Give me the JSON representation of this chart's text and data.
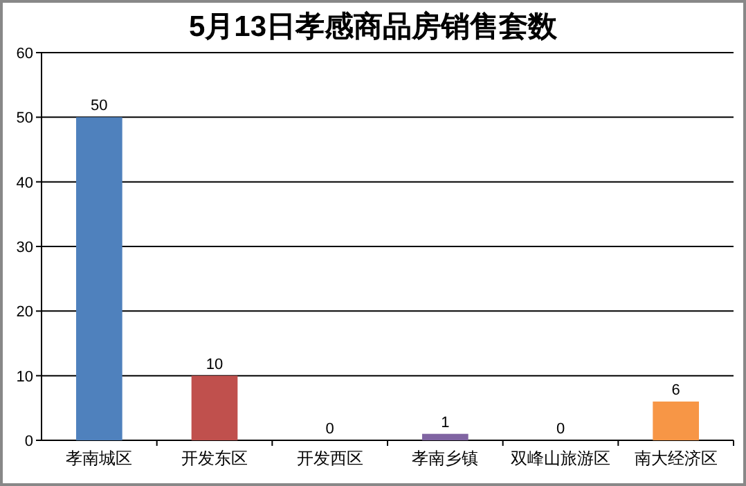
{
  "chart_data": {
    "type": "bar",
    "title": "5月13日孝感商品房销售套数",
    "categories": [
      "孝南城区",
      "开发东区",
      "开发西区",
      "孝南乡镇",
      "双峰山旅游区",
      "南大经济区"
    ],
    "values": [
      50,
      10,
      0,
      1,
      0,
      6
    ],
    "colors": [
      "#4f81bd",
      "#c0504d",
      "#9bbb59",
      "#8064a2",
      "#4bacc6",
      "#f79646"
    ],
    "ylim": [
      0,
      60
    ],
    "yticks": [
      0,
      10,
      20,
      30,
      40,
      50,
      60
    ],
    "grid": "y",
    "data_labels": true
  }
}
